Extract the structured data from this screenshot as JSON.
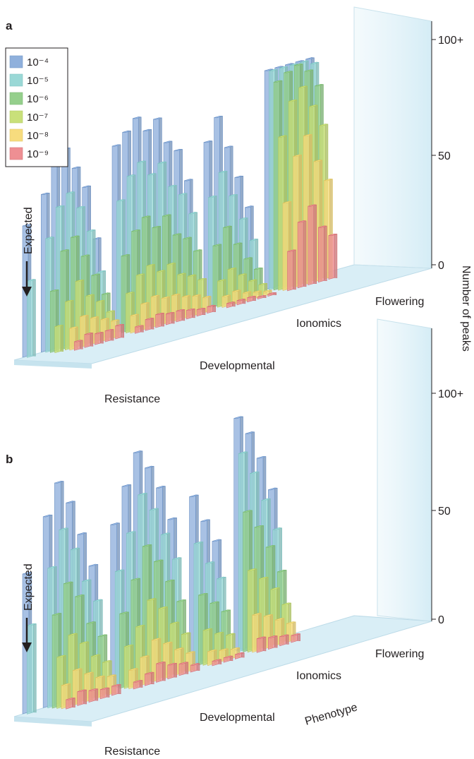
{
  "chart_data": [
    {
      "type": "bar",
      "panel": "a",
      "legend_title": "",
      "legend": [
        "10⁻⁴",
        "10⁻⁵",
        "10⁻⁶",
        "10⁻⁷",
        "10⁻⁸",
        "10⁻⁹"
      ],
      "legend_position": "top-left",
      "colors": [
        "#8fb0dc",
        "#9ad8d6",
        "#95cf8c",
        "#c9e07a",
        "#f7dc7e",
        "#ee8f93"
      ],
      "ylabel": "Number of peaks",
      "yticks": [
        "0",
        "50",
        "100+"
      ],
      "ylim": [
        0,
        100
      ],
      "xlabel": "",
      "expected_label": "Expected",
      "groups": [
        {
          "name": "Resistance",
          "values": [
            [
              60,
              35
            ],
            [
              72,
              52,
              28,
              12
            ],
            [
              85,
              65,
              45,
              22,
              10,
              4
            ],
            [
              90,
              70,
              50,
              30,
              14,
              6
            ],
            [
              80,
              62,
              40,
              22,
              12,
              5
            ],
            [
              70,
              50,
              30,
              18,
              10,
              5
            ],
            [
              45,
              30,
              20,
              12,
              8,
              6
            ]
          ]
        },
        {
          "name": "Developmental",
          "values": [
            [
              85,
              60,
              35,
              18,
              8,
              3
            ],
            [
              90,
              70,
              45,
              25,
              12,
              5
            ],
            [
              95,
              75,
              50,
              28,
              14,
              6
            ],
            [
              88,
              68,
              44,
              24,
              12,
              5
            ],
            [
              92,
              72,
              48,
              26,
              12,
              5
            ],
            [
              80,
              60,
              38,
              20,
              10,
              4
            ],
            [
              75,
              55,
              35,
              18,
              9,
              3
            ],
            [
              60,
              45,
              28,
              15,
              7,
              3
            ]
          ]
        },
        {
          "name": "Ionomics",
          "values": [
            [
              75,
              50,
              28,
              12,
              5,
              2
            ],
            [
              85,
              60,
              35,
              16,
              6,
              2
            ],
            [
              70,
              48,
              26,
              12,
              4,
              2
            ],
            [
              55,
              36,
              18,
              8,
              3,
              1
            ],
            [
              40,
              25,
              12,
              5,
              2,
              1
            ]
          ]
        },
        {
          "name": "Flowering",
          "values": [
            [
              100,
              100,
              95,
              70,
              40,
              18
            ],
            [
              100,
              100,
              98,
              85,
              60,
              30
            ],
            [
              100,
              100,
              100,
              90,
              68,
              36
            ],
            [
              100,
              100,
              96,
              80,
              55,
              25
            ],
            [
              100,
              98,
              88,
              70,
              45,
              20
            ]
          ]
        }
      ]
    },
    {
      "type": "bar",
      "panel": "b",
      "legend": [],
      "ylabel": "",
      "yticks": [
        "0",
        "50",
        "100+"
      ],
      "ylim": [
        0,
        100
      ],
      "xlabel": "Phenotype",
      "expected_label": "Expected",
      "groups": [
        {
          "name": "Resistance",
          "values": [
            [
              60,
              38
            ],
            [
              82,
              60,
              40,
              22,
              10,
              4
            ],
            [
              95,
              75,
              52,
              30,
              15,
              6
            ],
            [
              85,
              65,
              45,
              25,
              12,
              5
            ],
            [
              70,
              50,
              32,
              18,
              9,
              4
            ],
            [
              55,
              40,
              25,
              14,
              8,
              4
            ]
          ]
        },
        {
          "name": "Developmental",
          "values": [
            [
              70,
              50,
              32,
              18,
              8,
              3
            ],
            [
              85,
              65,
              45,
              25,
              12,
              5
            ],
            [
              98,
              80,
              58,
              35,
              18,
              8
            ],
            [
              90,
              72,
              50,
              30,
              15,
              6
            ],
            [
              80,
              60,
              40,
              22,
              11,
              5
            ],
            [
              65,
              48,
              30,
              16,
              8,
              3
            ]
          ]
        },
        {
          "name": "Ionomics",
          "values": [
            [
              72,
              52,
              30,
              15,
              6,
              2
            ],
            [
              60,
              42,
              25,
              12,
              5,
              2
            ],
            [
              50,
              34,
              20,
              10,
              4,
              2
            ]
          ]
        },
        {
          "name": "Flowering",
          "values": [
            [
              100,
              85,
              60,
              35,
              16,
              6
            ],
            [
              92,
              75,
              52,
              30,
              14,
              5
            ],
            [
              80,
              62,
              42,
              24,
              11,
              4
            ],
            [
              65,
              48,
              30,
              16,
              8,
              3
            ]
          ]
        }
      ]
    }
  ]
}
